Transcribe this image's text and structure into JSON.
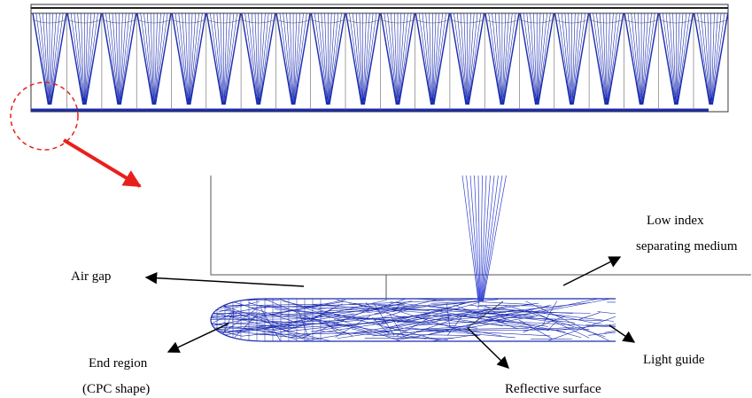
{
  "labels": {
    "air_gap": "Air gap",
    "low_index": [
      "Low index",
      "separating medium"
    ],
    "end_region": [
      "End region",
      "(CPC shape)"
    ],
    "light_guide": "Light guide",
    "reflective_surface": "Reflective surface"
  }
}
